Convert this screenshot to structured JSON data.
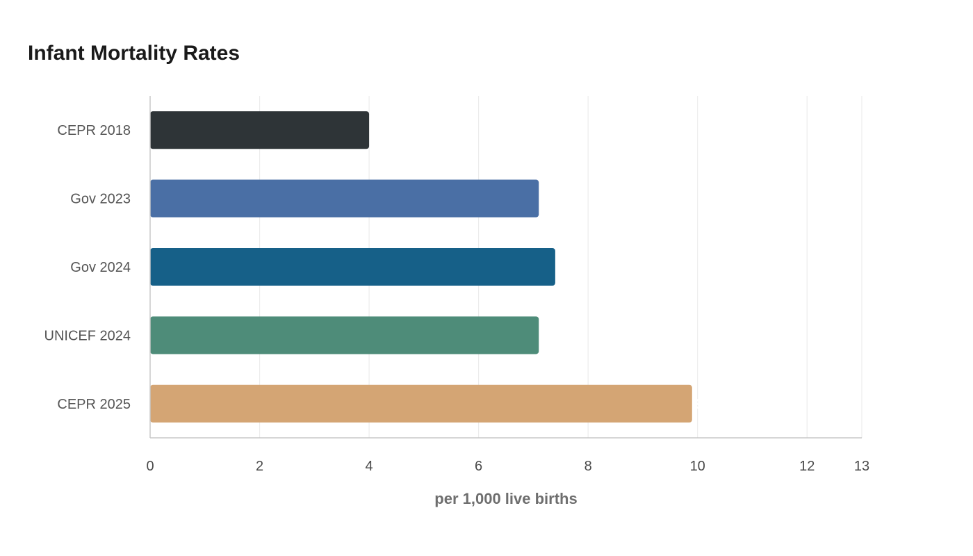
{
  "chart_data": {
    "type": "bar",
    "orientation": "horizontal",
    "title": "Infant Mortality Rates",
    "xlabel": "per 1,000 live births",
    "ylabel": "",
    "categories": [
      "CEPR 2018",
      "Gov 2023",
      "Gov 2024",
      "UNICEF 2024",
      "CEPR 2025"
    ],
    "values": [
      4.0,
      7.1,
      7.4,
      7.1,
      9.9
    ],
    "colors": [
      "#2e3437",
      "#4a6fa5",
      "#166088",
      "#4e8c79",
      "#d4a574"
    ],
    "xlim": [
      0,
      13
    ],
    "xticks": [
      "0",
      "2",
      "4",
      "6",
      "8",
      "10",
      "12",
      "13"
    ],
    "grid": true,
    "legend": "none"
  }
}
